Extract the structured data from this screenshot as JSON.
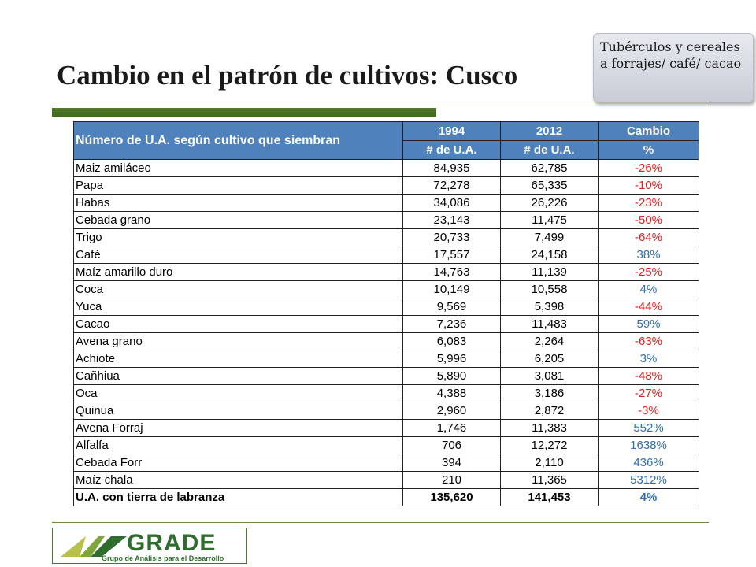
{
  "slide": {
    "title": "Cambio en el patrón de cultivos: Cusco",
    "callout": "Tubérculos y cereales a forrajes/ café/ cacao"
  },
  "table": {
    "header_label": "Número de U.A. según cultivo que siembran",
    "year1": "1994",
    "year2": "2012",
    "change": "Cambio",
    "sub1": "# de U.A.",
    "sub2": "# de U.A.",
    "sub3": "%",
    "rows": [
      {
        "label": "Maiz amiláceo",
        "v1994": "84,935",
        "v2012": "62,785",
        "pct": "-26%"
      },
      {
        "label": "Papa",
        "v1994": "72,278",
        "v2012": "65,335",
        "pct": "-10%"
      },
      {
        "label": "Habas",
        "v1994": "34,086",
        "v2012": "26,226",
        "pct": "-23%"
      },
      {
        "label": "Cebada grano",
        "v1994": "23,143",
        "v2012": "11,475",
        "pct": "-50%"
      },
      {
        "label": "Trigo",
        "v1994": "20,733",
        "v2012": "7,499",
        "pct": "-64%"
      },
      {
        "label": "Café",
        "v1994": "17,557",
        "v2012": "24,158",
        "pct": "38%"
      },
      {
        "label": "Maíz amarillo duro",
        "v1994": "14,763",
        "v2012": "11,139",
        "pct": "-25%"
      },
      {
        "label": "Coca",
        "v1994": "10,149",
        "v2012": "10,558",
        "pct": "4%"
      },
      {
        "label": "Yuca",
        "v1994": "9,569",
        "v2012": "5,398",
        "pct": "-44%"
      },
      {
        "label": "Cacao",
        "v1994": "7,236",
        "v2012": "11,483",
        "pct": "59%"
      },
      {
        "label": "Avena grano",
        "v1994": "6,083",
        "v2012": "2,264",
        "pct": "-63%"
      },
      {
        "label": "Achiote",
        "v1994": "5,996",
        "v2012": "6,205",
        "pct": "3%"
      },
      {
        "label": "Cañhiua",
        "v1994": "5,890",
        "v2012": "3,081",
        "pct": "-48%"
      },
      {
        "label": "Oca",
        "v1994": "4,388",
        "v2012": "3,186",
        "pct": "-27%"
      },
      {
        "label": "Quinua",
        "v1994": "2,960",
        "v2012": "2,872",
        "pct": "-3%"
      },
      {
        "label": "Avena Forraj",
        "v1994": "1,746",
        "v2012": "11,383",
        "pct": "552%"
      },
      {
        "label": "Alfalfa",
        "v1994": "706",
        "v2012": "12,272",
        "pct": "1638%"
      },
      {
        "label": "Cebada Forr",
        "v1994": "394",
        "v2012": "2,110",
        "pct": "436%"
      },
      {
        "label": "Maíz chala",
        "v1994": "210",
        "v2012": "11,365",
        "pct": "5312%"
      }
    ],
    "total": {
      "label": "U.A. con tierra de labranza",
      "v1994": "135,620",
      "v2012": "141,453",
      "pct": "4%"
    }
  },
  "logo": {
    "word": "GRADE",
    "subtitle": "Grupo de Análisis para el Desarrollo"
  },
  "colors": {
    "header_blue": "#4f81bd",
    "negative_red": "#e02020",
    "positive_blue": "#2f6db5",
    "accent_green": "#3d6b1c"
  }
}
